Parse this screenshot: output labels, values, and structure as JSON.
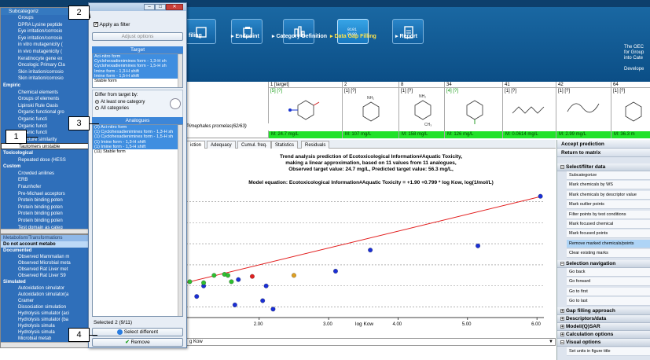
{
  "ribbon": {
    "buttons": [
      {
        "label": "filing",
        "icon": "profiling-icon"
      },
      {
        "label": "▸ Endpoint",
        "icon": "endpoint-icon"
      },
      {
        "label": "▸ Category Definition",
        "icon": "category-definition-icon"
      },
      {
        "label": "▸ Data Gap Filling",
        "icon": "data-gap-filling-icon",
        "active": true
      },
      {
        "label": "▸ Report",
        "icon": "report-icon"
      }
    ],
    "oecd_text": "The OEC\nfor Group\ninto Cate\n\nDevelope"
  },
  "matrix": {
    "columns": [
      {
        "header": "1 [target]",
        "tag": "[5] [?]",
        "value": "M: 24.7 mg/L",
        "tag_color": "green"
      },
      {
        "header": "2",
        "tag": "[1] [?]",
        "value": "M: 107 mg/L"
      },
      {
        "header": "8",
        "tag": "[1] [?]",
        "value": "M: 158 mg/L"
      },
      {
        "header": "34",
        "tag": "[4] [?]",
        "value": "M: 126 mg/L",
        "tag_color": "green"
      },
      {
        "header": "41",
        "tag": "[1] [?]",
        "value": "M: 0.0614 mg/L"
      },
      {
        "header": "42",
        "tag": "[1] [?]",
        "value": "M: 2.99 mg/L"
      },
      {
        "header": "64",
        "tag": "[1] [?]",
        "value": "M: 36.3 m"
      }
    ],
    "endpoint_row": "Pimephales promelas(62/63)",
    "structure_labels": {
      "nh2": "NH₂",
      "ch3": "CH₃"
    }
  },
  "tabs": [
    {
      "label": "iction"
    },
    {
      "label": "Adequacy"
    },
    {
      "label": "Cumul. freq."
    },
    {
      "label": "Statistics"
    },
    {
      "label": "Residuals"
    }
  ],
  "chart_data": {
    "type": "scatter",
    "title_lines": [
      "Trend analysis prediction of Ecotoxicological Information#Aquatic Toxicity,",
      "making a linear approximation, based on 11 values from 11 analogues,",
      "Observed target value: 24.7 mg/L, Predicted target value: 56.3 mg/L,"
    ],
    "equation": "Model equation:  Ecotoxicological Information#Aquatic Toxicity = +1.90 +0.799 * log Kow,  log(1/mol/L)",
    "xlabel": "log Kow",
    "x_ticks": [
      "2.00",
      "3.00",
      "4.00",
      "5.00",
      "6.00"
    ],
    "xlim": [
      0.95,
      6.1
    ],
    "ylim": [
      1.0,
      7.0
    ],
    "trendline": {
      "intercept": 1.9,
      "slope": 0.799
    },
    "series": [
      {
        "color": "#1a2fd6",
        "points": [
          [
            1.2,
            2.5
          ],
          [
            1.1,
            2.0
          ],
          [
            1.65,
            1.6
          ],
          [
            1.7,
            2.8
          ],
          [
            2.05,
            1.8
          ],
          [
            2.1,
            2.5
          ],
          [
            2.2,
            1.4
          ],
          [
            3.1,
            3.2
          ],
          [
            3.6,
            4.2
          ],
          [
            5.15,
            4.4
          ],
          [
            6.05,
            6.75
          ]
        ]
      },
      {
        "color": "#2fbf2f",
        "points": [
          [
            1.35,
            3.0
          ],
          [
            1.5,
            3.05
          ],
          [
            1.55,
            3.0
          ],
          [
            1.6,
            2.7
          ],
          [
            1.2,
            2.65
          ],
          [
            1.0,
            2.7
          ]
        ]
      },
      {
        "color": "#e0a020",
        "points": [
          [
            2.5,
            3.0
          ]
        ]
      },
      {
        "color": "#e02020",
        "points": [
          [
            1.9,
            2.95
          ]
        ]
      }
    ]
  },
  "bottom_select": "g Kow",
  "right_panel": {
    "accept": "Accept prediction",
    "return": "Return to matrix",
    "select_filter_title": "Select/filter data",
    "select_filter_items": [
      "Subcategorize",
      "Mark chemicals by WS",
      "Mark chemicals by descriptor value",
      "Mark outlier points",
      "Filter points by test conditions",
      "Mark focused chemical",
      "Mark focused points",
      "Remove marked chemicals/points",
      "Clear existing marks"
    ],
    "selection_nav_title": "Selection navigation",
    "nav_items": [
      "Go back",
      "Go forward",
      "Go to first",
      "Go to last"
    ],
    "collapsed_sections": [
      "Gap filling approach",
      "Descriptors/data",
      "Model/(Q)SAR",
      "Calculation options"
    ],
    "visual_options_title": "Visual options",
    "visual_last": "Set units in figure title"
  },
  "left_tree": {
    "title": "Subcategoriz",
    "items": [
      {
        "label": "Groups",
        "kind": "sub"
      },
      {
        "label": "DPRA Lysine peptide",
        "kind": "sub"
      },
      {
        "label": "Eye irritation/corrosio",
        "kind": "sub"
      },
      {
        "label": "Eye irritation/corrosio",
        "kind": "sub"
      },
      {
        "label": "in vitro mutagenicity (",
        "kind": "sub"
      },
      {
        "label": "in vivo mutagenicity (",
        "kind": "sub"
      },
      {
        "label": "Keratinocyte gene ex",
        "kind": "sub"
      },
      {
        "label": "Oncologic Primary Cla",
        "kind": "sub"
      },
      {
        "label": "Skin irritation/corrosio",
        "kind": "sub"
      },
      {
        "label": "Skin irritation/corrosio",
        "kind": "sub"
      },
      {
        "label": "Empiric",
        "kind": "cat"
      },
      {
        "label": "Chemical elements",
        "kind": "sub"
      },
      {
        "label": "Groups of elements",
        "kind": "sub"
      },
      {
        "label": "Lipinski Rule Oasis",
        "kind": "sub"
      },
      {
        "label": "Organic functional gro",
        "kind": "sub"
      },
      {
        "label": "Organic functi",
        "kind": "sub"
      },
      {
        "label": "Organic functi",
        "kind": "sub"
      },
      {
        "label": "Organic functi",
        "kind": "sub"
      },
      {
        "label": "Structure similarity",
        "kind": "sub"
      },
      {
        "label": "Tautomers unstable",
        "kind": "sub",
        "selected": true
      },
      {
        "label": "Toxicological",
        "kind": "cat"
      },
      {
        "label": "Repeated dose (HESS",
        "kind": "sub"
      },
      {
        "label": "Custom",
        "kind": "cat"
      },
      {
        "label": "Crowded anilines",
        "kind": "sub"
      },
      {
        "label": "ERB",
        "kind": "sub"
      },
      {
        "label": "Fraunhofer",
        "kind": "sub"
      },
      {
        "label": "Pre-Michael acceptors",
        "kind": "sub"
      },
      {
        "label": "Protein binding poten",
        "kind": "sub"
      },
      {
        "label": "Protein binding poten",
        "kind": "sub"
      },
      {
        "label": "Protein binding poten",
        "kind": "sub"
      },
      {
        "label": "Protein binding poten",
        "kind": "sub"
      },
      {
        "label": "Test domain as categ",
        "kind": "sub"
      }
    ],
    "lower_items": [
      {
        "label": "Metabolism/Transformations",
        "kind": "hdr"
      },
      {
        "label": "Do not account metabo",
        "kind": "cat-sel"
      },
      {
        "label": "Documented",
        "kind": "cat"
      },
      {
        "label": "Observed Mammalian m",
        "kind": "sub"
      },
      {
        "label": "Observed Microbial meta",
        "kind": "sub"
      },
      {
        "label": "Observed Rat Liver met",
        "kind": "sub"
      },
      {
        "label": "Observed Rat Liver S9",
        "kind": "sub"
      },
      {
        "label": "Simulated",
        "kind": "cat"
      },
      {
        "label": "Autoxidation simulator",
        "kind": "sub"
      },
      {
        "label": "Autoxidation simulator(a",
        "kind": "sub"
      },
      {
        "label": "Cramer",
        "kind": "sub"
      },
      {
        "label": "Dissociation simulation",
        "kind": "sub"
      },
      {
        "label": "Hydrolysis simulator (aci",
        "kind": "sub"
      },
      {
        "label": "Hydrolysis simulator (ba",
        "kind": "sub"
      },
      {
        "label": "Hydrolysis simula",
        "kind": "sub"
      },
      {
        "label": "Hydrolysis simula",
        "kind": "sub"
      },
      {
        "label": "Microbial metab",
        "kind": "sub"
      }
    ]
  },
  "dialog": {
    "apply_filter": "Apply as filter",
    "adjust": "Adjust options",
    "target_head": "Target",
    "target_items": [
      "Aci-nitro form",
      "Cyclohexadienimines form - 1,3-H sh",
      "Cyclohexadienimines form - 1,5-H sh",
      "Imine form - 1,3-H shift",
      "Imine form - 1,5-H shift",
      "Stable form"
    ],
    "differ_label": "Differ from target by:",
    "radio_one": "At least one category",
    "radio_all": "All categories",
    "analogues_head": "Analogues",
    "analogue_items": [
      "(2) Aci-nitro form",
      "(1) Cyclohexadienimines form - 1,3-H sh",
      "(1) Cyclohexadienimines form - 1,5-H sh",
      "(1) Imine form - 1,3-H shift",
      "(1) Imine form - 1,5-H shift",
      "(11) Stable form"
    ],
    "selected_count": "Selected 2 (9/11)",
    "select_different": "Select different",
    "remove": "Remove"
  },
  "callouts": [
    "1",
    "2",
    "3",
    "4"
  ],
  "colors": {
    "accent": "#3d86d8",
    "matrix_value_bg": "#22e22a",
    "trendline": "#e21d1d",
    "remove_icon": "#1aa11a"
  }
}
